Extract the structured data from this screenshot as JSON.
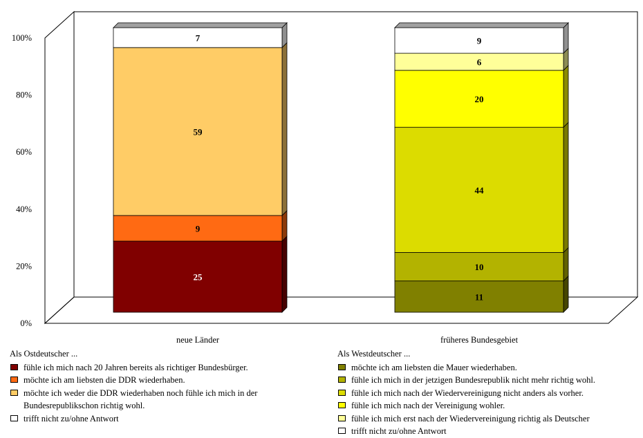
{
  "chart_data": {
    "type": "bar",
    "stacked": true,
    "percent_axis": true,
    "categories": [
      "neue Länder",
      "früheres Bundesgebiet"
    ],
    "y_ticks": [
      "0%",
      "20%",
      "40%",
      "60%",
      "80%",
      "100%"
    ],
    "ylim": [
      0,
      100
    ],
    "bars": [
      {
        "category": "neue Länder",
        "segments": [
          {
            "value": 25,
            "color": "#800000",
            "label_color": "#ffffff"
          },
          {
            "value": 9,
            "color": "#ff6a13",
            "label_color": "#000000"
          },
          {
            "value": 59,
            "color": "#ffcc66",
            "label_color": "#000000"
          },
          {
            "value": 7,
            "color": "#ffffff",
            "label_color": "#000000"
          }
        ]
      },
      {
        "category": "früheres Bundesgebiet",
        "segments": [
          {
            "value": 11,
            "color": "#808000",
            "label_color": "#000000"
          },
          {
            "value": 10,
            "color": "#b3b300",
            "label_color": "#000000"
          },
          {
            "value": 44,
            "color": "#dcdc00",
            "label_color": "#000000"
          },
          {
            "value": 20,
            "color": "#ffff00",
            "label_color": "#000000"
          },
          {
            "value": 6,
            "color": "#ffff99",
            "label_color": "#000000"
          },
          {
            "value": 9,
            "color": "#ffffff",
            "label_color": "#000000"
          }
        ]
      }
    ]
  },
  "legend_east": {
    "heading": "Als Ostdeutscher ...",
    "items": [
      {
        "label": "fühle ich mich nach 20 Jahren bereits als richtiger Bundesbürger.",
        "color": "#800000"
      },
      {
        "label": "möchte ich am liebsten die DDR wiederhaben.",
        "color": "#ff6a13"
      },
      {
        "label": "möchte ich weder die DDR wiederhaben noch fühle ich mich in der Bundesrepublikschon richtig wohl.",
        "color": "#ffcc66"
      },
      {
        "label": "trifft nicht zu/ohne Antwort",
        "color": "#ffffff"
      }
    ]
  },
  "legend_west": {
    "heading": "Als Westdeutscher ...",
    "items": [
      {
        "label": "möchte ich am liebsten die Mauer wiederhaben.",
        "color": "#808000"
      },
      {
        "label": "fühle ich mich in der jetzigen Bundesrepublik nicht mehr richtig wohl.",
        "color": "#b3b300"
      },
      {
        "label": "fühle ich mich nach der Wiedervereinigung nicht anders als vorher.",
        "color": "#dcdc00"
      },
      {
        "label": "fühle ich mich nach der Vereinigung wohler.",
        "color": "#ffff00"
      },
      {
        "label": "fühle ich mich erst nach der Wiedervereinigung richtig als Deutscher",
        "color": "#ffff99"
      },
      {
        "label": "trifft nicht zu/ohne Antwort",
        "color": "#ffffff"
      }
    ]
  }
}
